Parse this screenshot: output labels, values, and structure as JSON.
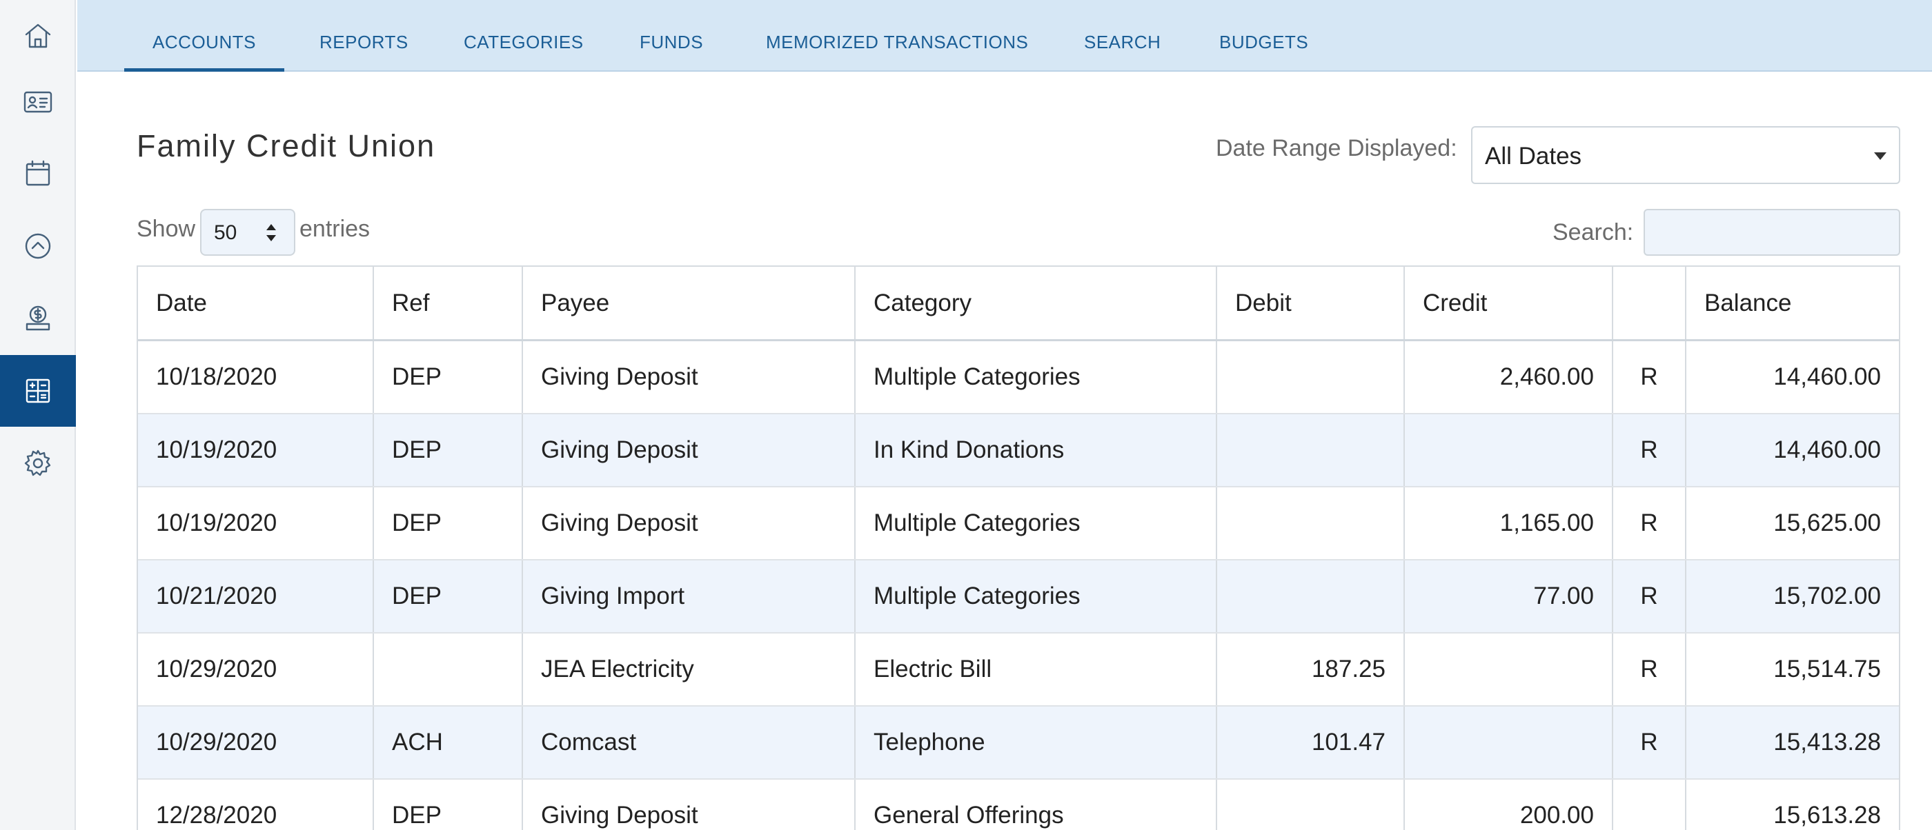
{
  "sidebar": {
    "items": [
      {
        "icon": "home-icon"
      },
      {
        "icon": "contact-card-icon"
      },
      {
        "icon": "calendar-icon"
      },
      {
        "icon": "chevron-up-circle-icon"
      },
      {
        "icon": "donation-icon"
      },
      {
        "icon": "dashboard-grid-icon",
        "active": true
      },
      {
        "icon": "gear-icon"
      }
    ]
  },
  "topnav": {
    "tabs": [
      {
        "label": "ACCOUNTS",
        "active": true
      },
      {
        "label": "REPORTS"
      },
      {
        "label": "CATEGORIES"
      },
      {
        "label": "FUNDS"
      },
      {
        "label": "MEMORIZED TRANSACTIONS"
      },
      {
        "label": "SEARCH"
      },
      {
        "label": "BUDGETS"
      }
    ]
  },
  "page": {
    "title": "Family Credit Union",
    "date_range_label": "Date Range Displayed:",
    "date_range_value": "All Dates",
    "show_label": "Show",
    "entries_value": "50",
    "entries_label": "entries",
    "search_label": "Search:",
    "search_value": ""
  },
  "table": {
    "headers": [
      "Date",
      "Ref",
      "Payee",
      "Category",
      "Debit",
      "Credit",
      "",
      "Balance"
    ],
    "rows": [
      {
        "date": "10/18/2020",
        "ref": "DEP",
        "payee": "Giving Deposit",
        "category": "Multiple Categories",
        "debit": "",
        "credit": "2,460.00",
        "rec": "R",
        "balance": "14,460.00"
      },
      {
        "date": "10/19/2020",
        "ref": "DEP",
        "payee": "Giving Deposit",
        "category": "In Kind Donations",
        "debit": "",
        "credit": "",
        "rec": "R",
        "balance": "14,460.00"
      },
      {
        "date": "10/19/2020",
        "ref": "DEP",
        "payee": "Giving Deposit",
        "category": "Multiple Categories",
        "debit": "",
        "credit": "1,165.00",
        "rec": "R",
        "balance": "15,625.00"
      },
      {
        "date": "10/21/2020",
        "ref": "DEP",
        "payee": "Giving Import",
        "category": "Multiple Categories",
        "debit": "",
        "credit": "77.00",
        "rec": "R",
        "balance": "15,702.00"
      },
      {
        "date": "10/29/2020",
        "ref": "",
        "payee": "JEA Electricity",
        "category": "Electric Bill",
        "debit": "187.25",
        "credit": "",
        "rec": "R",
        "balance": "15,514.75"
      },
      {
        "date": "10/29/2020",
        "ref": "ACH",
        "payee": "Comcast",
        "category": "Telephone",
        "debit": "101.47",
        "credit": "",
        "rec": "R",
        "balance": "15,413.28"
      },
      {
        "date": "12/28/2020",
        "ref": "DEP",
        "payee": "Giving Deposit",
        "category": "General Offerings",
        "debit": "",
        "credit": "200.00",
        "rec": "",
        "balance": "15,613.28"
      }
    ]
  },
  "colors": {
    "nav_bg": "#d6e7f5",
    "nav_text": "#1b5e96",
    "sidebar_active": "#0d4c86",
    "row_alt": "#eef4fc"
  }
}
